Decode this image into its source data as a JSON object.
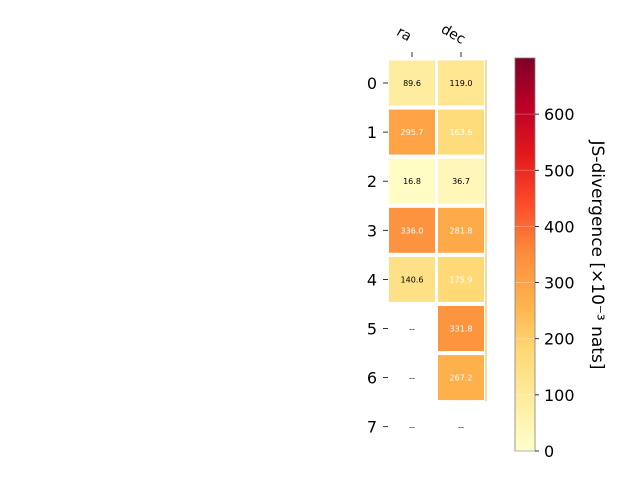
{
  "chart_data": {
    "type": "heatmap",
    "columns": [
      "ra",
      "dec"
    ],
    "rows": [
      "0",
      "1",
      "2",
      "3",
      "4",
      "5",
      "6",
      "7"
    ],
    "values": [
      [
        89.6,
        119.0
      ],
      [
        295.7,
        163.6
      ],
      [
        16.8,
        36.7
      ],
      [
        336.0,
        281.8
      ],
      [
        140.6,
        175.9
      ],
      [
        null,
        331.8
      ],
      [
        null,
        267.2
      ],
      [
        null,
        null
      ]
    ],
    "cell_labels": [
      [
        "89.6",
        "119.0"
      ],
      [
        "295.7",
        "163.6"
      ],
      [
        "16.8",
        "36.7"
      ],
      [
        "336.0",
        "281.8"
      ],
      [
        "140.6",
        "175.9"
      ],
      [
        "--",
        "331.8"
      ],
      [
        "--",
        "267.2"
      ],
      [
        "--",
        "--"
      ]
    ],
    "colorbar": {
      "label": "JS-divergence [×10⁻³ nats]",
      "range": [
        0,
        700
      ],
      "ticks": [
        "0",
        "100",
        "200",
        "300",
        "400",
        "500",
        "600"
      ],
      "colormap": "YlOrRd"
    }
  }
}
